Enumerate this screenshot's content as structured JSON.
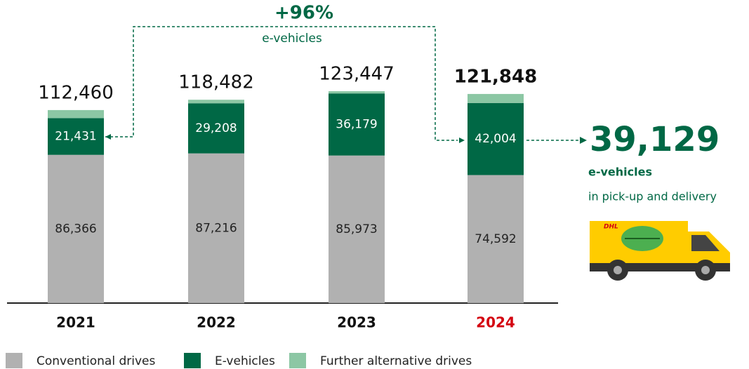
{
  "chart_data": {
    "type": "stacked_bar",
    "categories": [
      "2021",
      "2022",
      "2023",
      "2024"
    ],
    "series": [
      {
        "name": "Conventional drives",
        "color": "#b1b1b1",
        "text_color": "#222222",
        "values": [
          86366,
          87216,
          85973,
          74592
        ],
        "value_labels": [
          "86,366",
          "87,216",
          "85,973",
          "74,592"
        ]
      },
      {
        "name": "E-vehicles",
        "color": "#006845",
        "text_color": "#ffffff",
        "values": [
          21431,
          29208,
          36179,
          42004
        ],
        "value_labels": [
          "21,431",
          "29,208",
          "36,179",
          "42,004"
        ]
      },
      {
        "name": "Further alternative drives",
        "color": "#8cc7a4",
        "values": [
          4663,
          2058,
          1295,
          5252
        ]
      }
    ],
    "totals": [
      112460,
      118482,
      123447,
      121848
    ],
    "total_labels": [
      "112,460",
      "118,482",
      "123,447",
      "121,848"
    ],
    "highlight_index": 3,
    "highlight_color": "#d40511",
    "ylim": [
      0,
      130000
    ],
    "annotations": {
      "growth": "+96%",
      "growth_note": "e-vehicles",
      "count": "39,129",
      "count_note": "e-vehicles",
      "count_detail": "in pick-up and delivery"
    }
  }
}
